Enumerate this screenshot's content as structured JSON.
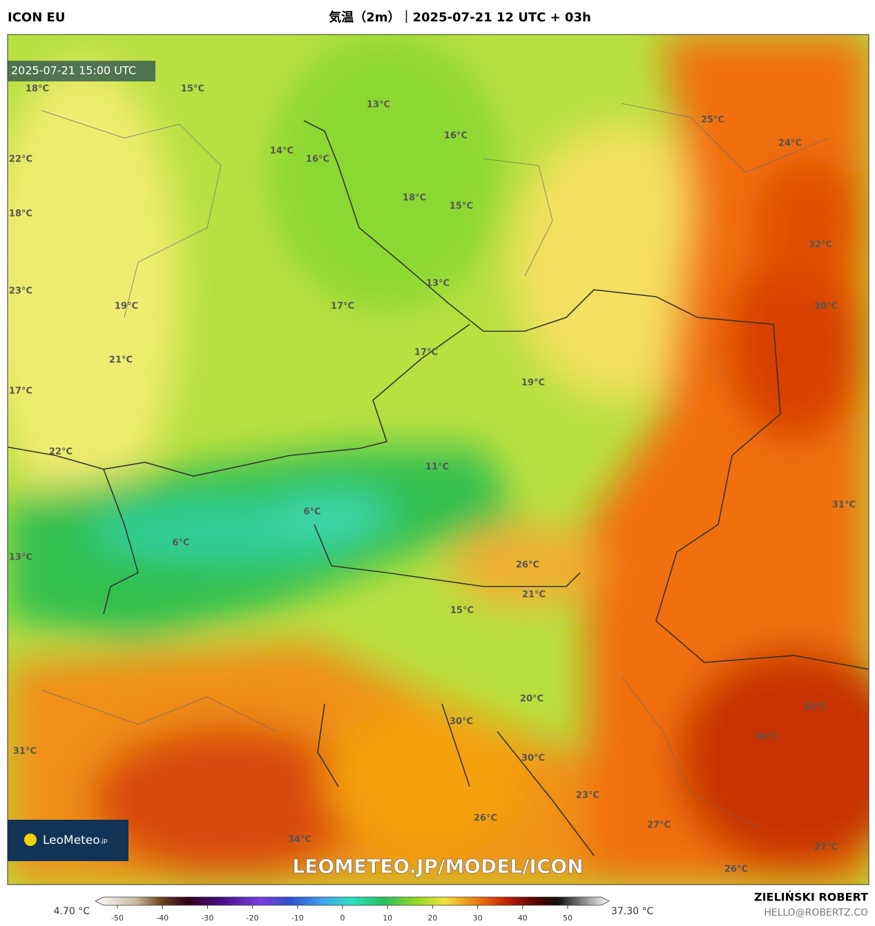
{
  "header": {
    "model": "ICON EU",
    "title": "気温（2m）｜2025-07-21 12 UTC + 03h"
  },
  "timestamp": "2025-07-21 15:00 UTC",
  "map_labels": [
    "18°C",
    "15°C",
    "13°C",
    "16°C",
    "25°C",
    "24°C",
    "22°C",
    "14°C",
    "16°C",
    "18°C",
    "15°C",
    "18°C",
    "32°C",
    "23°C",
    "13°C",
    "19°C",
    "17°C",
    "30°C",
    "21°C",
    "17°C",
    "19°C",
    "17°C",
    "22°C",
    "11°C",
    "31°C",
    "6°C",
    "6°C",
    "13°C",
    "26°C",
    "21°C",
    "15°C",
    "20°C",
    "32°C",
    "30°C",
    "36°C",
    "31°C",
    "30°C",
    "23°C",
    "26°C",
    "27°C",
    "34°C",
    "27°C",
    "26°C"
  ],
  "logo": {
    "name": "LeoMeteo",
    "suffix": ".jp"
  },
  "watermark": "LEOMETEO.JP/MODEL/ICON",
  "colorbar": {
    "min_label": "4.70 °C",
    "max_label": "37.30 °C",
    "ticks": [
      -50,
      -40,
      -30,
      -20,
      -10,
      0,
      10,
      20,
      30,
      40,
      50
    ]
  },
  "author": {
    "name": "ZIELIŃSKI ROBERT",
    "email": "HELLO@ROBERTZ.CO"
  }
}
